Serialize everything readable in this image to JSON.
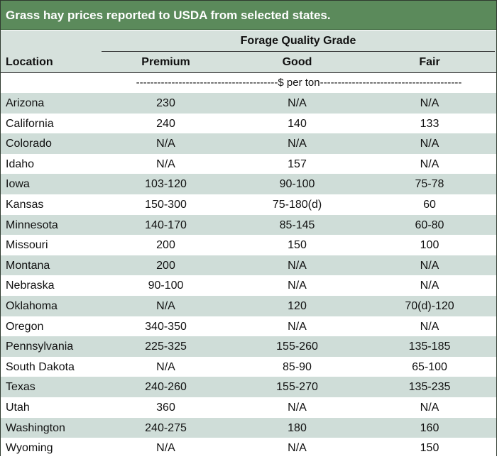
{
  "title": "Grass hay prices reported to USDA from selected states.",
  "group_header": "Forage Quality Grade",
  "columns": {
    "location": "Location",
    "premium": "Premium",
    "good": "Good",
    "fair": "Fair"
  },
  "units_row": "----------------------------------------$ per ton----------------------------------------",
  "rows": [
    {
      "location": "Arizona",
      "premium": "230",
      "good": "N/A",
      "fair": "N/A"
    },
    {
      "location": "California",
      "premium": "240",
      "good": "140",
      "fair": "133"
    },
    {
      "location": "Colorado",
      "premium": "N/A",
      "good": "N/A",
      "fair": "N/A"
    },
    {
      "location": "Idaho",
      "premium": "N/A",
      "good": "157",
      "fair": "N/A"
    },
    {
      "location": "Iowa",
      "premium": "103-120",
      "good": "90-100",
      "fair": "75-78"
    },
    {
      "location": "Kansas",
      "premium": "150-300",
      "good": "75-180(d)",
      "fair": "60"
    },
    {
      "location": "Minnesota",
      "premium": "140-170",
      "good": "85-145",
      "fair": "60-80"
    },
    {
      "location": "Missouri",
      "premium": "200",
      "good": "150",
      "fair": "100"
    },
    {
      "location": "Montana",
      "premium": "200",
      "good": "N/A",
      "fair": "N/A"
    },
    {
      "location": "Nebraska",
      "premium": "90-100",
      "good": "N/A",
      "fair": "N/A"
    },
    {
      "location": "Oklahoma",
      "premium": "N/A",
      "good": "120",
      "fair": "70(d)-120"
    },
    {
      "location": "Oregon",
      "premium": "340-350",
      "good": "N/A",
      "fair": "N/A"
    },
    {
      "location": "Pennsylvania",
      "premium": "225-325",
      "good": "155-260",
      "fair": "135-185"
    },
    {
      "location": "South Dakota",
      "premium": "N/A",
      "good": "85-90",
      "fair": "65-100"
    },
    {
      "location": "Texas",
      "premium": "240-260",
      "good": "155-270",
      "fair": "135-235"
    },
    {
      "location": "Utah",
      "premium": "360",
      "good": "N/A",
      "fair": "N/A"
    },
    {
      "location": "Washington",
      "premium": "240-275",
      "good": "180",
      "fair": "160"
    },
    {
      "location": "Wyoming",
      "premium": "N/A",
      "good": "N/A",
      "fair": "150"
    }
  ]
}
